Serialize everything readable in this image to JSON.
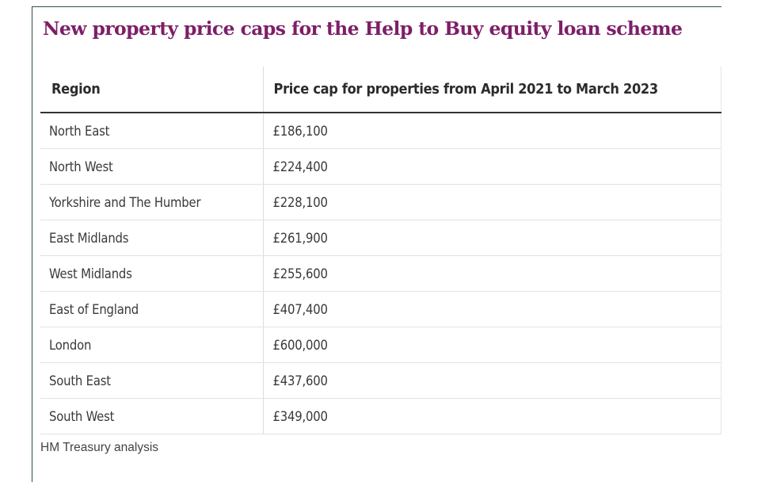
{
  "title": "New property price caps for the Help to Buy equity loan scheme",
  "table": {
    "headers": [
      "Region",
      "Price cap for properties from April 2021 to March 2023"
    ],
    "rows": [
      [
        "North East",
        "£186,100"
      ],
      [
        "North West",
        "£224,400"
      ],
      [
        "Yorkshire and The Humber",
        "£228,100"
      ],
      [
        "East Midlands",
        "£261,900"
      ],
      [
        "West Midlands",
        "£255,600"
      ],
      [
        "East of England",
        "£407,400"
      ],
      [
        "London",
        "£600,000"
      ],
      [
        "South East",
        "£437,600"
      ],
      [
        "South West",
        "£349,000"
      ]
    ]
  },
  "source": "HM Treasury analysis",
  "colors": {
    "title": "#7d1f68",
    "frame": "#2f4f4f"
  }
}
